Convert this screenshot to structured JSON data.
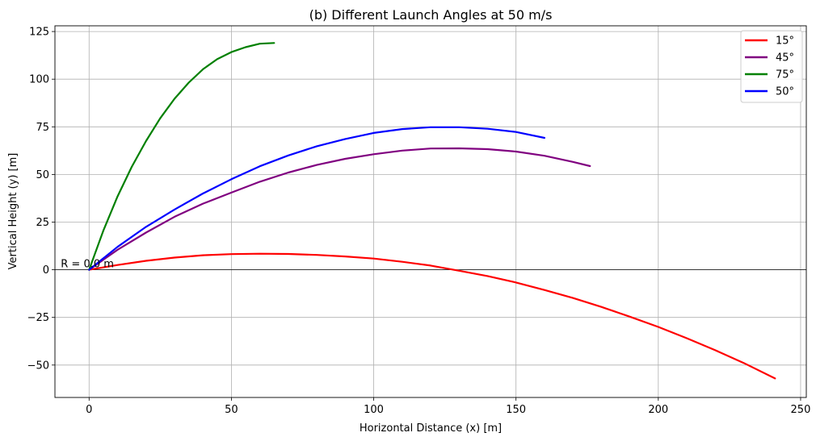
{
  "chart_data": {
    "type": "line",
    "title": "(b) Different Launch Angles at 50 m/s",
    "xlabel": "Horizontal Distance (x) [m]",
    "ylabel": "Vertical Height (y) [m]",
    "xlim": [
      -12,
      252
    ],
    "ylim": [
      -67,
      128
    ],
    "xticks": [
      0,
      50,
      100,
      150,
      200,
      250
    ],
    "yticks": [
      -50,
      -25,
      0,
      25,
      50,
      75,
      100,
      125
    ],
    "xtick_labels": [
      "0",
      "50",
      "100",
      "150",
      "200",
      "250"
    ],
    "ytick_labels": [
      "−50",
      "−25",
      "0",
      "25",
      "50",
      "75",
      "100",
      "125"
    ],
    "grid": true,
    "zero_line": true,
    "legend_position": "top-right",
    "annotation": "R = 0.0 m",
    "series": [
      {
        "name": "15°",
        "color": "#ff0000",
        "x": [
          0,
          10,
          20,
          30,
          40,
          50,
          60,
          70,
          80,
          90,
          100,
          110,
          120,
          130,
          140,
          150,
          160,
          170,
          180,
          190,
          200,
          210,
          220,
          230,
          241
        ],
        "y": [
          0,
          2.5,
          4.7,
          6.4,
          7.6,
          8.2,
          8.4,
          8.3,
          7.8,
          7.0,
          5.9,
          4.2,
          2.2,
          -0.5,
          -3.3,
          -6.7,
          -10.6,
          -14.8,
          -19.5,
          -24.6,
          -30.0,
          -35.9,
          -42.2,
          -48.9,
          -57.0
        ]
      },
      {
        "name": "45°",
        "color": "#800080",
        "x": [
          0,
          10,
          20,
          30,
          40,
          50,
          60,
          70,
          80,
          90,
          100,
          110,
          120,
          130,
          140,
          150,
          160,
          170,
          176
        ],
        "y": [
          0,
          10.5,
          19.5,
          27.8,
          34.7,
          40.5,
          46.2,
          51.0,
          55.0,
          58.2,
          60.6,
          62.5,
          63.6,
          63.7,
          63.3,
          62.0,
          59.8,
          56.6,
          54.4
        ]
      },
      {
        "name": "75°",
        "color": "#008000",
        "x": [
          0,
          5,
          10,
          15,
          20,
          25,
          30,
          35,
          40,
          45,
          50,
          55,
          60,
          65
        ],
        "y": [
          0,
          20.5,
          38.5,
          54.0,
          67.5,
          79.5,
          89.7,
          98.2,
          105.2,
          110.5,
          114.2,
          116.8,
          118.6,
          119.0
        ]
      },
      {
        "name": "50°",
        "color": "#0000ff",
        "x": [
          0,
          10,
          20,
          30,
          40,
          50,
          60,
          70,
          80,
          90,
          100,
          110,
          120,
          130,
          140,
          150,
          160
        ],
        "y": [
          0,
          12.0,
          22.5,
          31.6,
          40.0,
          47.5,
          54.3,
          60.0,
          64.8,
          68.6,
          71.8,
          73.8,
          74.8,
          74.8,
          74.0,
          72.3,
          69.2
        ]
      }
    ]
  }
}
